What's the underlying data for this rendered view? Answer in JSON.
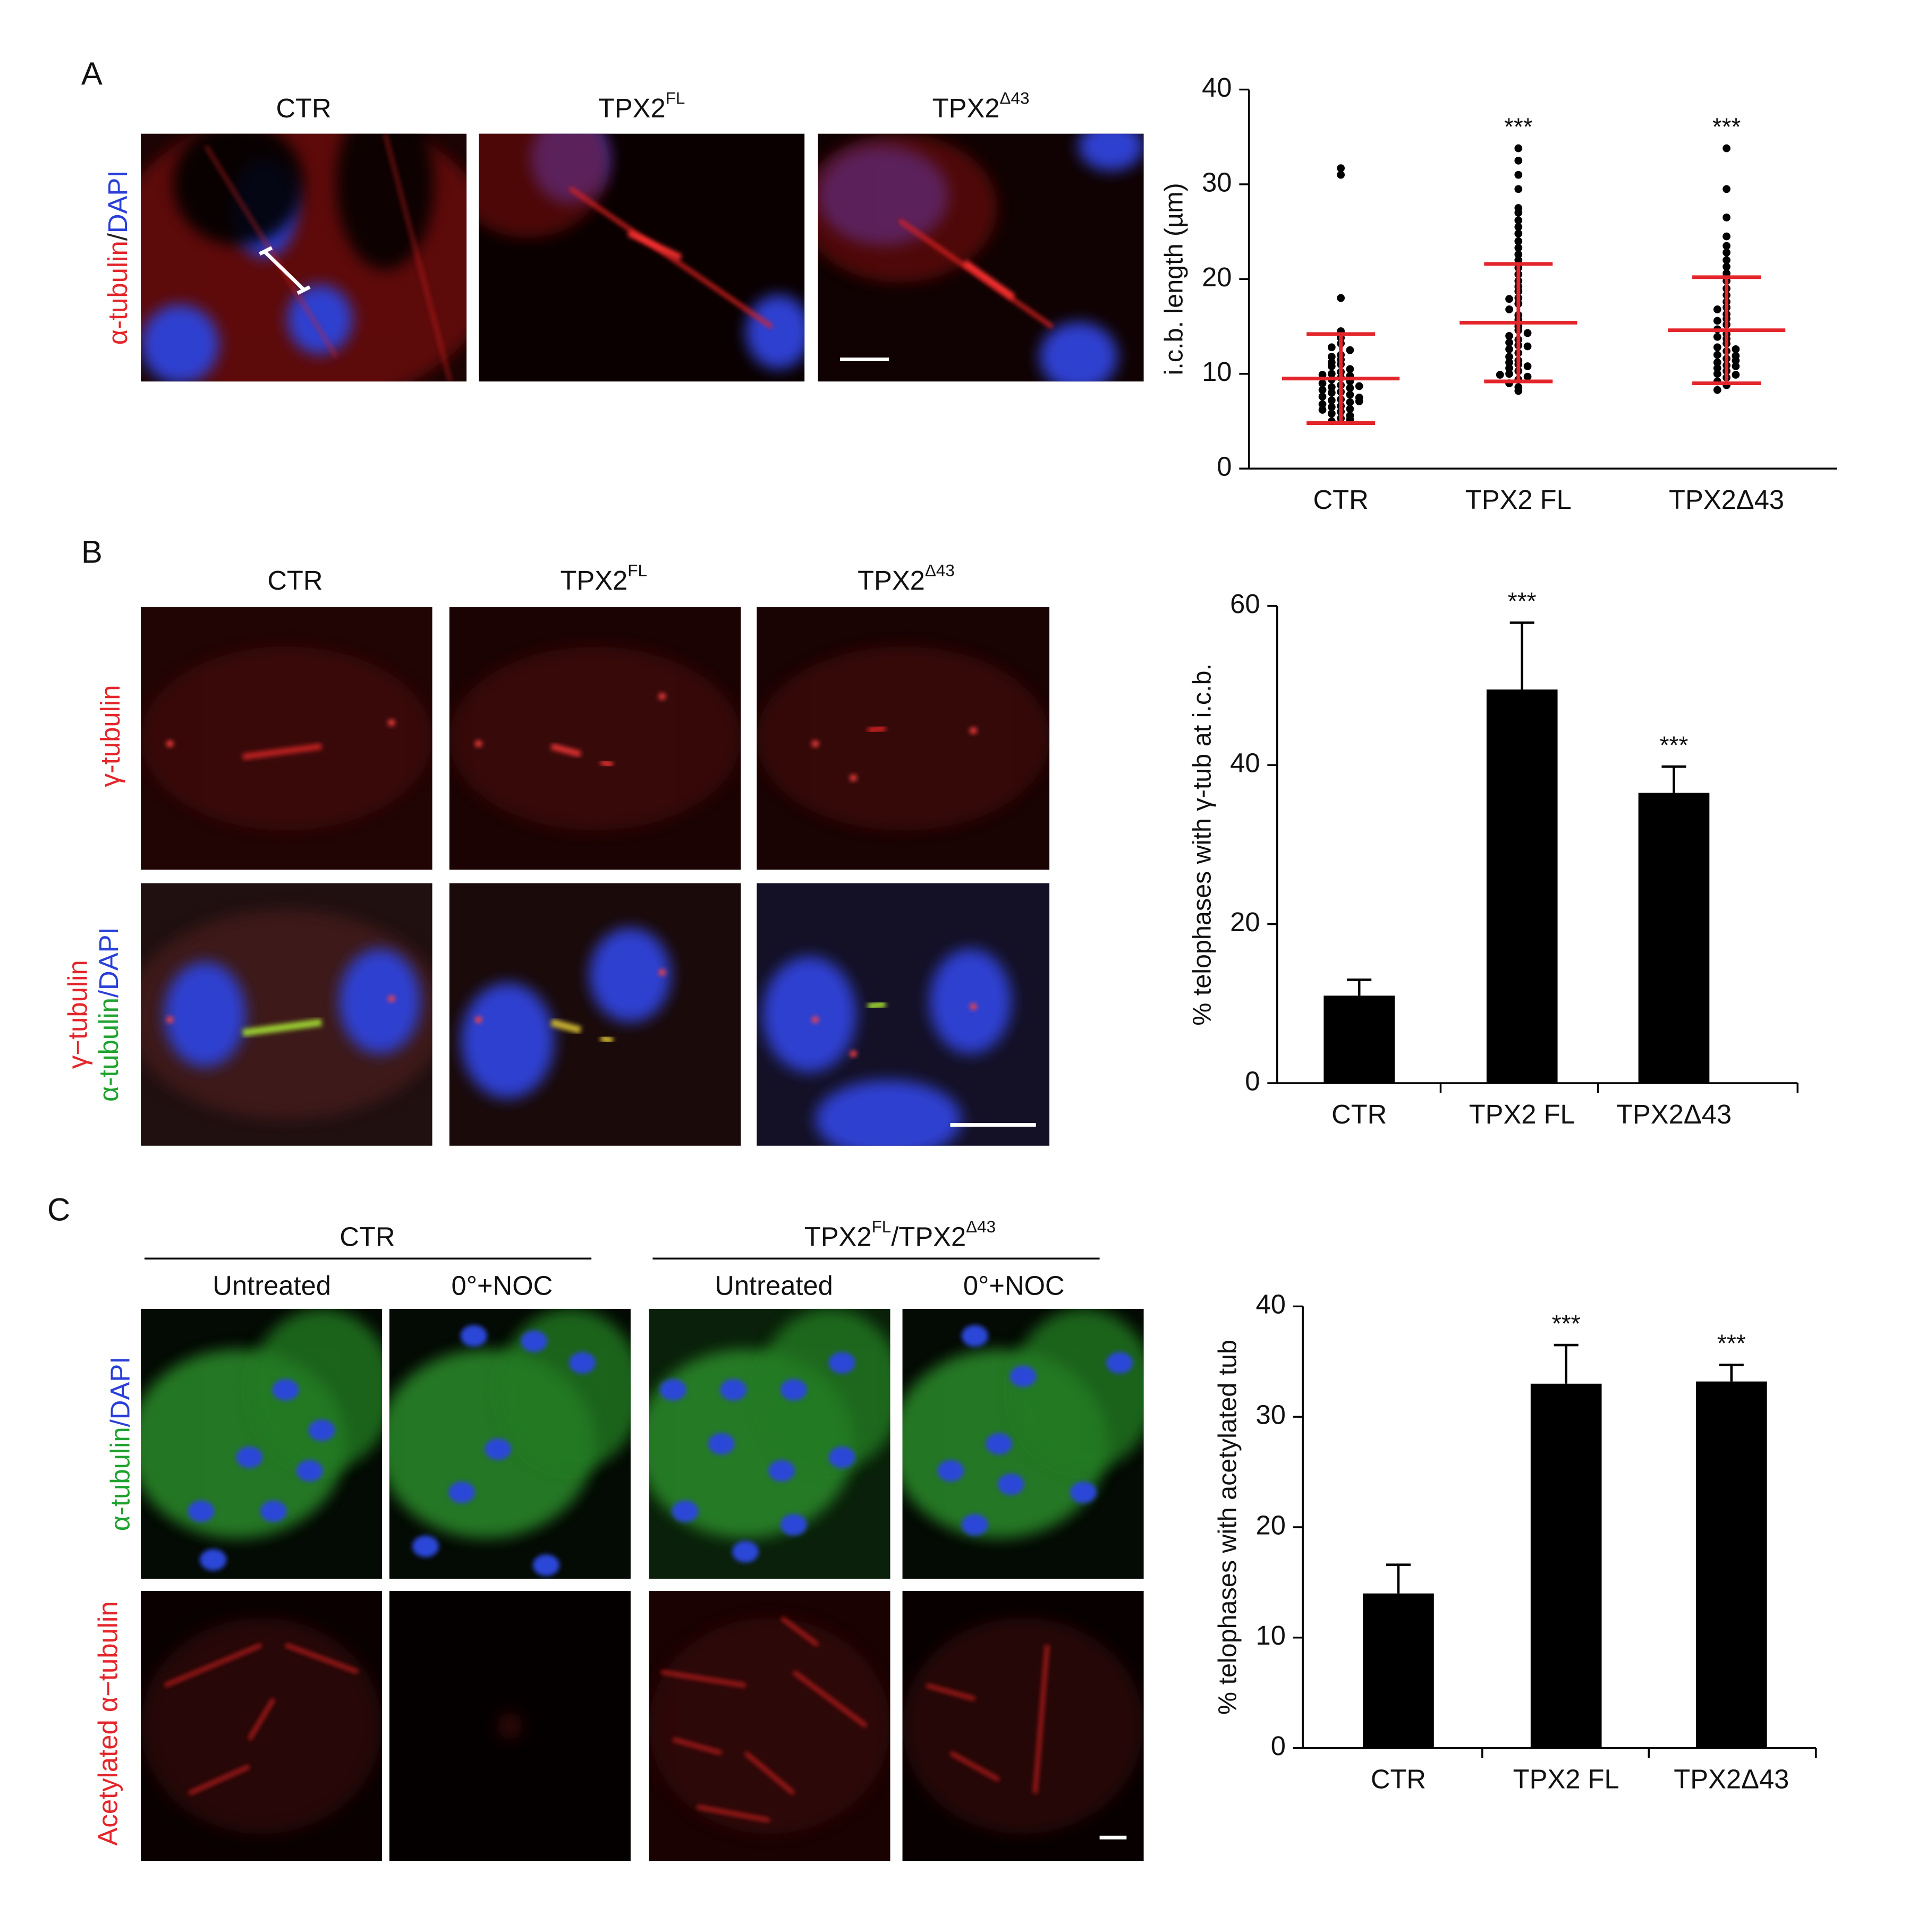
{
  "panels": {
    "A": {
      "label": "A",
      "columns": [
        [
          {
            "text": "CTR"
          }
        ],
        [
          {
            "text": "TPX2",
            "sup": "FL"
          }
        ],
        [
          {
            "text": "TPX2",
            "sup": "Δ43"
          }
        ]
      ],
      "row_labels": [
        [
          [
            {
              "text": "α-tubulin",
              "color": "#e3262b"
            },
            {
              "text": "/",
              "color": "#222222"
            },
            {
              "text": "DAPI",
              "color": "#2a3fd8"
            }
          ]
        ]
      ]
    },
    "B": {
      "label": "B",
      "columns": [
        [
          {
            "text": "CTR"
          }
        ],
        [
          {
            "text": "TPX2",
            "sup": "FL"
          }
        ],
        [
          {
            "text": "TPX2",
            "sup": "Δ43"
          }
        ]
      ],
      "row_labels": [
        [
          [
            {
              "text": "γ-tubulin",
              "color": "#e3262b"
            }
          ]
        ],
        [
          [
            {
              "text": "γ−tubulin",
              "color": "#e3262b"
            }
          ],
          [
            {
              "text": "α-tubulin",
              "color": "#1fa22e"
            },
            {
              "text": "/DAPI",
              "color": "#2a3fd8"
            }
          ]
        ]
      ]
    },
    "C": {
      "label": "C",
      "groups": [
        [
          {
            "text": "CTR"
          }
        ],
        [
          {
            "text": "TPX2",
            "sup": "FL"
          },
          {
            "text": "/TPX2",
            "sup": "Δ43"
          }
        ]
      ],
      "columns": [
        [
          {
            "text": "Untreated"
          }
        ],
        [
          {
            "text": "0°+NOC"
          }
        ],
        [
          {
            "text": "Untreated"
          }
        ],
        [
          {
            "text": "0°+NOC"
          }
        ]
      ],
      "row_labels": [
        [
          [
            {
              "text": "α-tubulin",
              "color": "#1fa22e"
            },
            {
              "text": "/DAPI",
              "color": "#2a3fd8"
            }
          ]
        ],
        [
          [
            {
              "text": "Acetylated α−tubulin",
              "color": "#e3262b"
            }
          ]
        ]
      ]
    }
  },
  "chart_data": [
    {
      "type": "dot",
      "y_label": "i.c.b. length (µm)",
      "categories": [
        "CTR",
        "TPX2 FL",
        "TPX2Δ43"
      ],
      "values": [
        [
          31.7,
          31.0,
          18.0,
          14.5,
          13.8,
          13.2,
          12.8,
          12.0,
          11.5,
          11.2,
          11.0,
          10.8,
          10.5,
          10.2,
          10.0,
          9.8,
          9.6,
          9.4,
          9.2,
          9.0,
          8.8,
          8.6,
          8.5,
          8.3,
          8.1,
          8.0,
          7.8,
          7.6,
          7.5,
          7.3,
          7.2,
          7.0,
          6.8,
          6.6,
          6.5,
          6.3,
          6.0,
          5.8,
          5.6,
          5.3,
          5.0,
          5.2,
          6.2,
          7.1,
          8.7,
          9.9,
          11.8,
          12.5
        ],
        [
          33.8,
          32.5,
          31.0,
          29.5,
          27.5,
          27.0,
          26.2,
          25.5,
          24.8,
          24.0,
          23.3,
          22.6,
          22.0,
          21.2,
          20.5,
          19.8,
          19.2,
          18.7,
          18.0,
          17.4,
          16.8,
          16.2,
          15.7,
          15.0,
          14.6,
          14.0,
          13.6,
          13.0,
          12.6,
          12.2,
          11.8,
          11.4,
          11.0,
          10.6,
          10.3,
          10.0,
          9.7,
          9.4,
          9.0,
          8.6,
          8.2,
          12.9,
          14.3,
          11.2,
          10.8,
          9.9,
          17.9,
          13.3
        ],
        [
          33.8,
          29.5,
          26.5,
          24.5,
          23.5,
          22.8,
          22.0,
          21.3,
          20.6,
          19.8,
          19.0,
          18.3,
          17.6,
          17.0,
          16.3,
          15.8,
          15.2,
          14.7,
          14.2,
          13.7,
          13.2,
          12.8,
          12.4,
          12.0,
          11.6,
          11.2,
          10.9,
          10.6,
          10.3,
          10.0,
          9.6,
          9.2,
          8.8,
          8.3,
          11.4,
          12.6,
          13.9,
          15.6,
          10.8,
          9.9,
          11.9,
          16.8
        ]
      ],
      "means": [
        9.5,
        15.4,
        14.6
      ],
      "sd": [
        4.7,
        6.2,
        5.6
      ],
      "color": "#000000",
      "summary_color": "#e3262b",
      "significance": [
        null,
        "***",
        "***"
      ],
      "ylim": [
        0,
        40
      ],
      "yticks": [
        0,
        10,
        20,
        30,
        40
      ]
    },
    {
      "type": "bar",
      "y_label": "% telophases with γ-tub at i.c.b.",
      "categories": [
        "CTR",
        "TPX2 FL",
        "TPX2Δ43"
      ],
      "values": [
        11.0,
        49.5,
        36.5
      ],
      "errors": [
        2.0,
        8.4,
        3.3
      ],
      "color": "#000000",
      "significance": [
        null,
        "***",
        "***"
      ],
      "ylim": [
        0,
        60
      ],
      "yticks": [
        0,
        20,
        40,
        60
      ]
    },
    {
      "type": "bar",
      "y_label": "% telophases with acetylated tub",
      "categories": [
        "CTR",
        "TPX2 FL",
        "TPX2Δ43"
      ],
      "values": [
        14.0,
        33.0,
        33.2
      ],
      "errors": [
        2.6,
        3.5,
        1.5
      ],
      "color": "#000000",
      "significance": [
        null,
        "***",
        "***"
      ],
      "ylim": [
        0,
        40
      ],
      "yticks": [
        0,
        10,
        20,
        30,
        40
      ]
    }
  ]
}
